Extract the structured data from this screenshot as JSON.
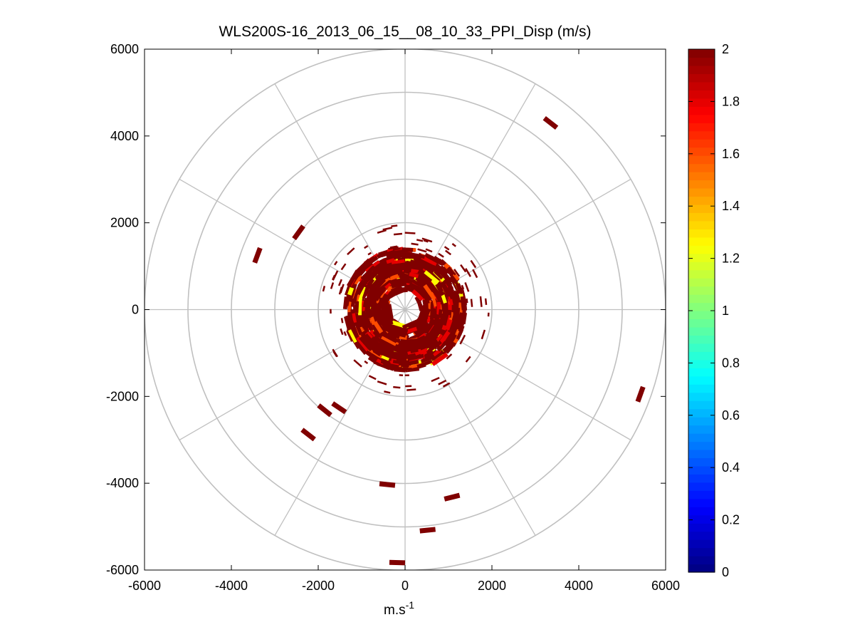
{
  "chart_data": {
    "type": "heatmap",
    "subtype": "polar-ppi",
    "title": "WLS200S-16_2013_06_15__08_10_33_PPI_Disp (m/s)",
    "xlabel": "m.s",
    "xlabel_superscript": "-1",
    "ylabel": "",
    "xlim": [
      -6000,
      6000
    ],
    "ylim": [
      -6000,
      6000
    ],
    "x_ticks": [
      -6000,
      -4000,
      -2000,
      0,
      2000,
      4000,
      6000
    ],
    "y_ticks": [
      -6000,
      -4000,
      -2000,
      0,
      2000,
      4000,
      6000
    ],
    "x_tick_labels": [
      "-6000",
      "-4000",
      "-2000",
      "0",
      "2000",
      "4000",
      "6000"
    ],
    "y_tick_labels": [
      "-6000",
      "-4000",
      "-2000",
      "0",
      "2000",
      "4000",
      "6000"
    ],
    "polar_grid": {
      "ring_radii": [
        1000,
        2000,
        3000,
        4000,
        5000,
        6000
      ],
      "spoke_angles_deg": [
        0,
        30,
        60,
        90,
        120,
        150,
        180,
        210,
        240,
        270,
        300,
        330
      ],
      "grid_color": "#c0c0c0"
    },
    "colorbar": {
      "colormap": "jet",
      "min": 0,
      "max": 2,
      "ticks": [
        0,
        0.2,
        0.4,
        0.6,
        0.8,
        1,
        1.2,
        1.4,
        1.6,
        1.8,
        2
      ],
      "tick_labels": [
        "0",
        "0.2",
        "0.4",
        "0.6",
        "0.8",
        "1",
        "1.2",
        "1.4",
        "1.6",
        "1.8",
        "2"
      ]
    },
    "core_region": {
      "description": "dense scattered returns",
      "radius_range": [
        300,
        1400
      ],
      "dominant_value": 2,
      "secondary_values": [
        1.8,
        1.6,
        1.25
      ]
    },
    "isolated_returns": [
      {
        "x": 3350,
        "y": 4300,
        "value": 2
      },
      {
        "x": -2450,
        "y": 1780,
        "value": 2
      },
      {
        "x": -3400,
        "y": 1250,
        "value": 2
      },
      {
        "x": 5420,
        "y": -1950,
        "value": 2
      },
      {
        "x": -1850,
        "y": -2320,
        "value": 2
      },
      {
        "x": -1520,
        "y": -2260,
        "value": 2
      },
      {
        "x": -2230,
        "y": -2880,
        "value": 2
      },
      {
        "x": -410,
        "y": -4030,
        "value": 2
      },
      {
        "x": 1080,
        "y": -4320,
        "value": 2
      },
      {
        "x": 520,
        "y": -5080,
        "value": 2
      },
      {
        "x": -180,
        "y": -5830,
        "value": 2
      }
    ]
  }
}
